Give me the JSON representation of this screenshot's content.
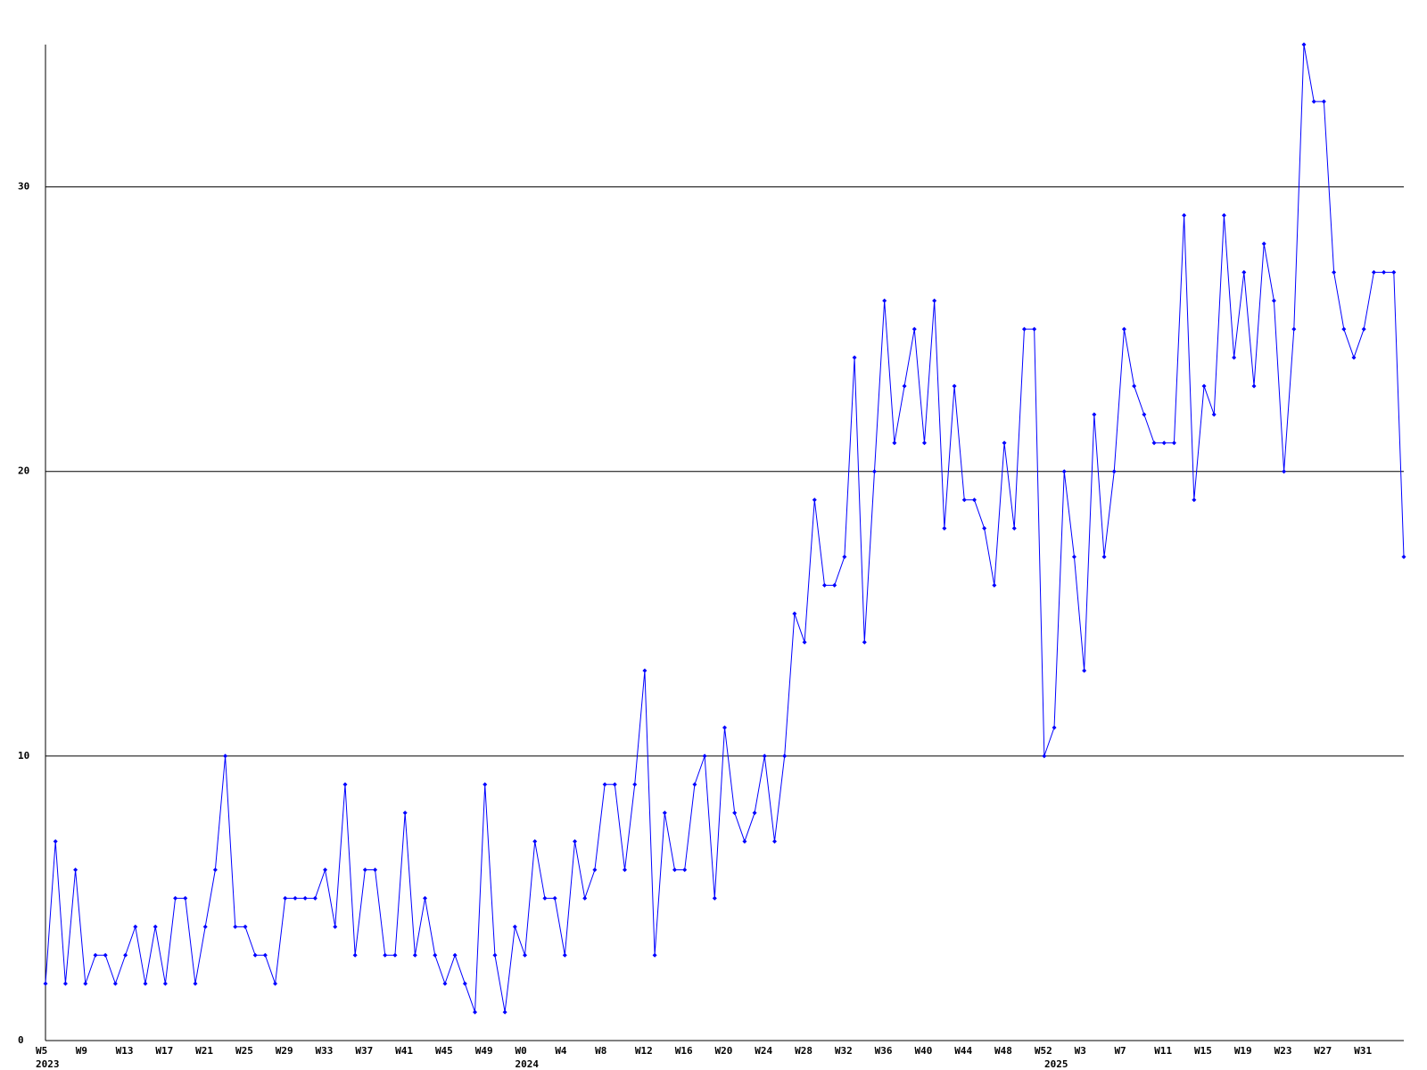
{
  "chart_data": {
    "type": "line",
    "categories": [
      "W5",
      null,
      null,
      null,
      "W9",
      null,
      null,
      null,
      "W13",
      null,
      null,
      null,
      "W17",
      null,
      null,
      null,
      "W21",
      null,
      null,
      null,
      "W25",
      null,
      null,
      null,
      "W29",
      null,
      null,
      null,
      "W33",
      null,
      null,
      null,
      "W37",
      null,
      null,
      null,
      "W41",
      null,
      null,
      null,
      "W45",
      null,
      null,
      null,
      "W49",
      null,
      null,
      null,
      "W0",
      null,
      null,
      null,
      "W4",
      null,
      null,
      null,
      "W8",
      null,
      null,
      null,
      "W12",
      null,
      null,
      null,
      "W16",
      null,
      null,
      null,
      "W20",
      null,
      null,
      null,
      "W24",
      null,
      null,
      null,
      "W28",
      null,
      null,
      null,
      "W32",
      null,
      null,
      null,
      "W36",
      null,
      null,
      null,
      "W40",
      null,
      null,
      null,
      "W44",
      null,
      null,
      null,
      "W48",
      null,
      null,
      null,
      "W52",
      null,
      null,
      null,
      "W3",
      null,
      null,
      null,
      "W7",
      null,
      null,
      null,
      "W11",
      null,
      null,
      null,
      "W15",
      null,
      null,
      null,
      "W19",
      null,
      null,
      null,
      "W23",
      null,
      null,
      null,
      "W27",
      null,
      null,
      null,
      "W31",
      null,
      null,
      null,
      null
    ],
    "category_years": [
      "2023",
      null,
      null,
      null,
      null,
      null,
      null,
      null,
      null,
      null,
      null,
      null,
      null,
      null,
      null,
      null,
      null,
      null,
      null,
      null,
      null,
      null,
      null,
      null,
      null,
      null,
      null,
      null,
      null,
      null,
      null,
      null,
      null,
      null,
      null,
      null,
      null,
      null,
      null,
      null,
      null,
      null,
      null,
      null,
      null,
      null,
      null,
      null,
      "2024",
      null,
      null,
      null,
      null,
      null,
      null,
      null,
      null,
      null,
      null,
      null,
      null,
      null,
      null,
      null,
      null,
      null,
      null,
      null,
      null,
      null,
      null,
      null,
      null,
      null,
      null,
      null,
      null,
      null,
      null,
      null,
      null,
      null,
      null,
      null,
      null,
      null,
      null,
      null,
      null,
      null,
      null,
      null,
      null,
      null,
      null,
      null,
      null,
      null,
      null,
      null,
      null,
      "2025",
      null,
      null,
      null,
      null,
      null,
      null,
      null,
      null,
      null,
      null,
      null,
      null,
      null,
      null,
      null,
      null,
      null,
      null,
      null,
      null,
      null,
      null,
      null,
      null,
      null,
      null,
      null,
      null,
      null,
      null,
      null,
      null,
      null,
      null,
      null
    ],
    "values": [
      2,
      7,
      2,
      6,
      2,
      3,
      3,
      2,
      3,
      4,
      2,
      4,
      2,
      5,
      5,
      2,
      4,
      6,
      10,
      4,
      4,
      3,
      3,
      2,
      5,
      5,
      5,
      5,
      6,
      4,
      9,
      3,
      6,
      6,
      3,
      3,
      8,
      3,
      5,
      3,
      2,
      3,
      2,
      1,
      9,
      3,
      1,
      4,
      3,
      7,
      5,
      5,
      3,
      7,
      5,
      6,
      9,
      9,
      6,
      9,
      13,
      3,
      8,
      6,
      6,
      9,
      10,
      5,
      11,
      8,
      7,
      8,
      10,
      7,
      10,
      15,
      14,
      19,
      16,
      16,
      17,
      24,
      14,
      20,
      26,
      21,
      23,
      25,
      21,
      26,
      18,
      23,
      19,
      19,
      18,
      16,
      21,
      18,
      25,
      25,
      10,
      11,
      20,
      17,
      13,
      22,
      17,
      20,
      25,
      23,
      22,
      21,
      21,
      21,
      29,
      19,
      23,
      22,
      29,
      24,
      27,
      23,
      28,
      26,
      20,
      25,
      35,
      33,
      33,
      27,
      25,
      24,
      25,
      27,
      27,
      27,
      17
    ],
    "color": "#0000ff",
    "ylim": [
      0,
      35
    ],
    "yticks": [
      0,
      10,
      20,
      30
    ],
    "grid": true
  }
}
